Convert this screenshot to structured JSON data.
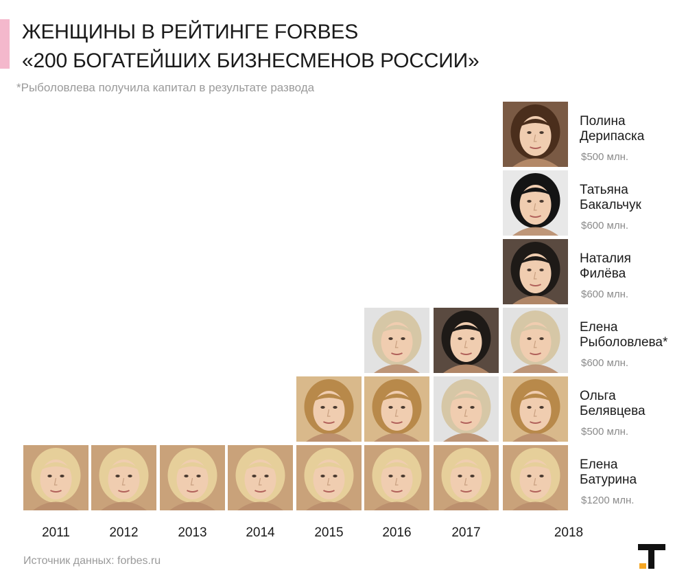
{
  "title": {
    "line1": "ЖЕНЩИНЫ В РЕЙТИНГЕ FORBES",
    "line2": "«200 БОГАТЕЙШИХ БИЗНЕСМЕНОВ РОССИИ»"
  },
  "footnote": "*Рыболовлева получила капитал в результате развода",
  "source": "Источник данных: forbes.ru",
  "colors": {
    "accent": "#f4b8cc",
    "logo_black": "#111111",
    "logo_orange": "#f5a623"
  },
  "chart_data": {
    "type": "table",
    "title": "ЖЕНЩИНЫ В РЕЙТИНГЕ FORBES «200 БОГАТЕЙШИХ БИЗНЕСМЕНОВ РОССИИ»",
    "years": [
      "2011",
      "2012",
      "2013",
      "2014",
      "2015",
      "2016",
      "2017",
      "2018"
    ],
    "women": [
      {
        "id": "baturina",
        "name_line1": "Елена",
        "name_line2": "Батурина",
        "value_2018": "$1200 млн.",
        "photo_color": "#c9a27a",
        "hair_color": "#e6cf9a"
      },
      {
        "id": "belyavtseva",
        "name_line1": "Ольга",
        "name_line2": "Белявцева",
        "value_2018": "$500 млн.",
        "photo_color": "#d9b98b",
        "hair_color": "#b8894a"
      },
      {
        "id": "rybolovleva",
        "name_line1": "Елена",
        "name_line2": "Рыболовлева*",
        "value_2018": "$600 млн.",
        "photo_color": "#e2e2e2",
        "hair_color": "#d6c7a6"
      },
      {
        "id": "fileva",
        "name_line1": "Наталия",
        "name_line2": "Филёва",
        "value_2018": "$600 млн.",
        "photo_color": "#5a4a40",
        "hair_color": "#1e1a17"
      },
      {
        "id": "bakalchuk",
        "name_line1": "Татьяна",
        "name_line2": "Бакальчук",
        "value_2018": "$600 млн.",
        "photo_color": "#e8e8e8",
        "hair_color": "#141414"
      },
      {
        "id": "deripaska",
        "name_line1": "Полина",
        "name_line2": "Дерипаска",
        "value_2018": "$500 млн.",
        "photo_color": "#7a5a44",
        "hair_color": "#4a2e1c"
      }
    ],
    "columns": [
      {
        "year": "2011",
        "stack": [
          "baturina"
        ]
      },
      {
        "year": "2012",
        "stack": [
          "baturina"
        ]
      },
      {
        "year": "2013",
        "stack": [
          "baturina"
        ]
      },
      {
        "year": "2014",
        "stack": [
          "baturina"
        ]
      },
      {
        "year": "2015",
        "stack": [
          "baturina",
          "belyavtseva"
        ]
      },
      {
        "year": "2016",
        "stack": [
          "baturina",
          "belyavtseva",
          "rybolovleva"
        ]
      },
      {
        "year": "2017",
        "stack": [
          "baturina",
          "rybolovleva",
          "fileva"
        ]
      },
      {
        "year": "2018",
        "stack": [
          "baturina",
          "belyavtseva",
          "rybolovleva",
          "fileva",
          "bakalchuk",
          "deripaska"
        ]
      }
    ]
  }
}
